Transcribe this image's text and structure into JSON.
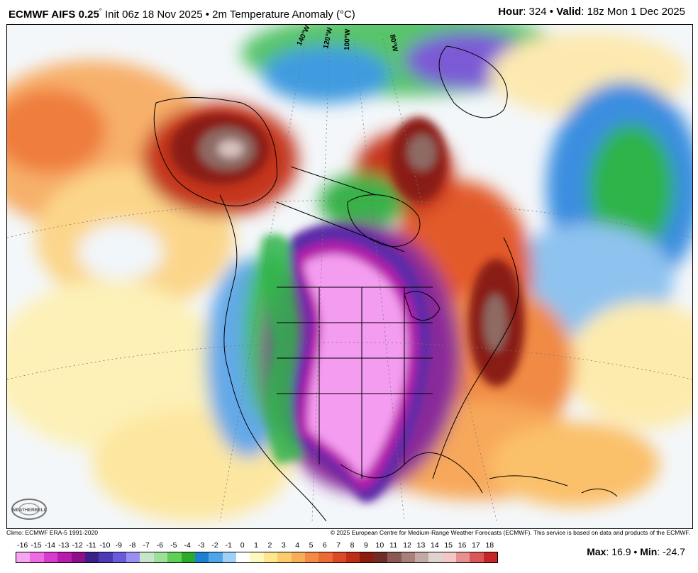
{
  "header": {
    "model": "ECMWF AIFS 0.25",
    "degree_mark": "°",
    "init": "Init 06z 18 Nov 2025",
    "bullet": "•",
    "variable": "2m Temperature Anomaly (°C)",
    "hour_label": "Hour",
    "hour_value": ": 324",
    "valid_label": "Valid",
    "valid_value": ": 18z Mon 1 Dec 2025"
  },
  "map": {
    "longitude_labels": [
      "140°W",
      "120°W",
      "100°W",
      "80°W"
    ],
    "logo_text": "WEATHERBELL"
  },
  "credits": {
    "climo": "Climo: ECMWF ERA-5 1991-2020",
    "copyright": "© 2025 European Centre for Medium-Range Weather Forecasts (ECMWF). This service is based on data and products of the ECMWF."
  },
  "colorbar": {
    "ticks": [
      "-16",
      "-15",
      "-14",
      "-13",
      "-12",
      "-11",
      "-10",
      "-9",
      "-8",
      "-7",
      "-6",
      "-5",
      "-4",
      "-3",
      "-2",
      "-1",
      "0",
      "1",
      "2",
      "3",
      "4",
      "5",
      "6",
      "7",
      "8",
      "9",
      "10",
      "11",
      "12",
      "13",
      "14",
      "15",
      "16",
      "17",
      "18"
    ],
    "colors": [
      "#f6a6f0",
      "#ee6ce3",
      "#d93ad0",
      "#b51dab",
      "#8e1088",
      "#3c1f8a",
      "#4b39b5",
      "#6a5bd8",
      "#9a8ff0",
      "#c7e6c9",
      "#9edf9a",
      "#5fcf5a",
      "#2caa2a",
      "#1f7fd2",
      "#4ea6ea",
      "#9fd0f5",
      "#ffffff",
      "#fff7c0",
      "#fde68c",
      "#fbcd6a",
      "#f8ad58",
      "#f38a45",
      "#ec6b35",
      "#dc4a25",
      "#bd2e18",
      "#8c1c10",
      "#6e2d26",
      "#8a5a52",
      "#a88079",
      "#c4a9a4",
      "#e0d2cf",
      "#f5c6c6",
      "#e88f8f",
      "#d95757",
      "#c42727"
    ],
    "stats_max_label": "Max",
    "stats_max_value": ": 16.9",
    "stats_min_label": "Min",
    "stats_min_value": ": -24.7",
    "stats_bullet": "•"
  }
}
